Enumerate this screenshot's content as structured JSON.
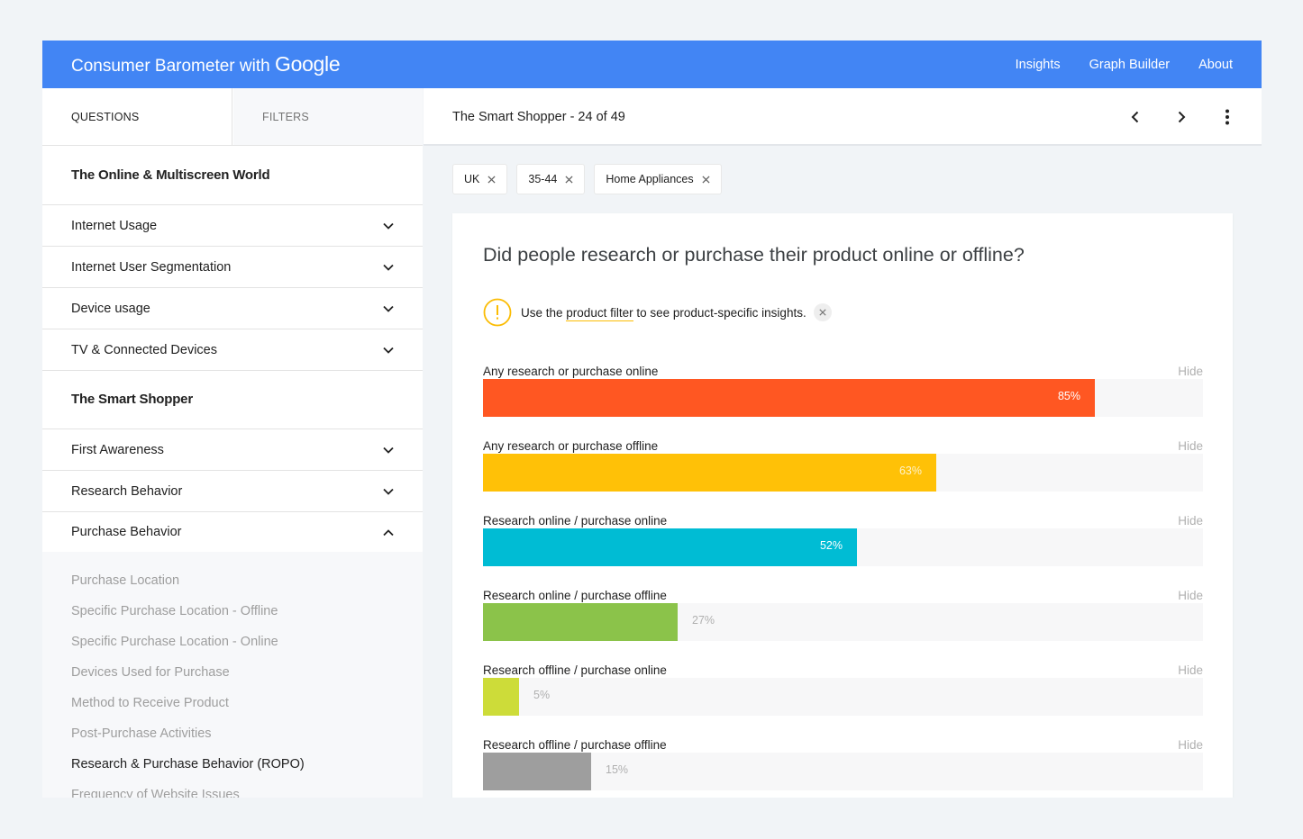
{
  "header": {
    "brand_text": "Consumer Barometer with",
    "brand_google": "Google",
    "nav": [
      "Insights",
      "Graph Builder",
      "About"
    ]
  },
  "sidebar": {
    "tabs": {
      "questions": "QUESTIONS",
      "filters": "FILTERS"
    },
    "section1": {
      "title": "The Online & Multiscreen World",
      "items": [
        "Internet Usage",
        "Internet User Segmentation",
        "Device usage",
        "TV & Connected Devices"
      ]
    },
    "section2": {
      "title": "The Smart Shopper",
      "items": [
        "First Awareness",
        "Research Behavior",
        "Purchase Behavior"
      ],
      "expanded_item": "Purchase Behavior",
      "sub_items": [
        "Purchase Location",
        "Specific Purchase Location - Offline",
        "Specific Purchase Location - Online",
        "Devices Used for Purchase",
        "Method to Receive Product",
        "Post-Purchase Activities",
        "Research & Purchase Behavior (ROPO)",
        "Frequency of Website Issues"
      ],
      "active_sub_item": "Research & Purchase Behavior (ROPO)"
    }
  },
  "main": {
    "title": "The Smart Shopper - 24 of 49",
    "icons": [
      "chevron-left-icon",
      "chevron-right-icon",
      "more-vert-icon"
    ],
    "filters": [
      "UK",
      "35-44",
      "Home Appliances"
    ],
    "question": "Did people research or purchase their product online or offline?",
    "notice": {
      "before": "Use the",
      "link": "product filter",
      "after": "to see product-specific insights."
    },
    "hide_label": "Hide"
  },
  "chart_data": {
    "type": "bar",
    "orientation": "horizontal",
    "categories": [
      "Any research or purchase online",
      "Any research or purchase offline",
      "Research online / purchase online",
      "Research online / purchase offline",
      "Research offline / purchase online",
      "Research offline / purchase offline"
    ],
    "values": [
      85,
      63,
      52,
      27,
      5,
      15
    ],
    "value_labels": [
      "85%",
      "63%",
      "52%",
      "27%",
      "5%",
      "15%"
    ],
    "colors": [
      "#ff5722",
      "#ffc107",
      "#00bcd4",
      "#8bc34a",
      "#cddc39",
      "#9e9e9e"
    ],
    "xlim": [
      0,
      100
    ]
  }
}
